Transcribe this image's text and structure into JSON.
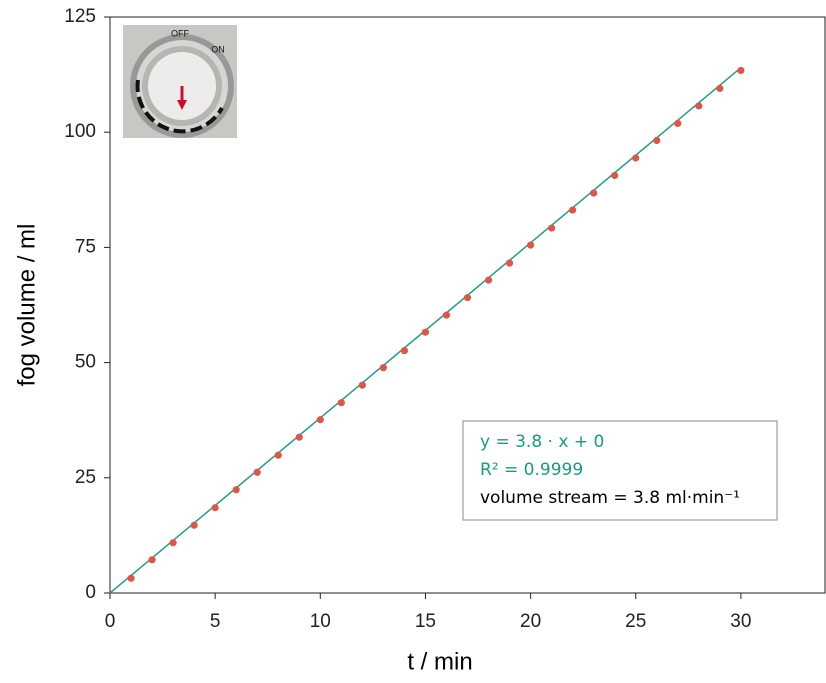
{
  "chart_data": {
    "type": "scatter",
    "x_label": "t / min",
    "y_label": "fog volume / ml",
    "xlim": [
      0,
      34
    ],
    "ylim": [
      0,
      125
    ],
    "xticks": [
      0,
      5,
      10,
      15,
      20,
      25,
      30
    ],
    "yticks": [
      0,
      25,
      50,
      75,
      100,
      125
    ],
    "series": [
      {
        "type": "scatter",
        "color": "#d9574b",
        "x": [
          1,
          2,
          3,
          4,
          5,
          6,
          7,
          8,
          9,
          10,
          11,
          12,
          13,
          14,
          15,
          16,
          17,
          18,
          19,
          20,
          21,
          22,
          23,
          24,
          25,
          26,
          27,
          28,
          29,
          30
        ],
        "values": [
          3.2,
          7.2,
          10.9,
          14.7,
          18.5,
          22.4,
          26.2,
          29.9,
          33.8,
          37.6,
          41.3,
          45.1,
          48.9,
          52.6,
          56.6,
          60.3,
          64.1,
          67.9,
          71.6,
          75.5,
          79.2,
          83.1,
          86.8,
          90.6,
          94.4,
          98.2,
          101.9,
          105.7,
          109.5,
          113.4
        ]
      },
      {
        "type": "line",
        "color": "#2a9a86",
        "x": [
          0,
          30
        ],
        "values": [
          0,
          114
        ]
      }
    ],
    "annotations": [
      {
        "text": "y = 3.8 · x + 0",
        "color": "#1a9a80"
      },
      {
        "text": "R² = 0.9999",
        "color": "#1a9a80"
      },
      {
        "text": "volume stream = 3.8 ml·min⁻¹",
        "color": "#000000"
      }
    ],
    "inset_labels": [
      "OFF",
      "ON"
    ]
  }
}
